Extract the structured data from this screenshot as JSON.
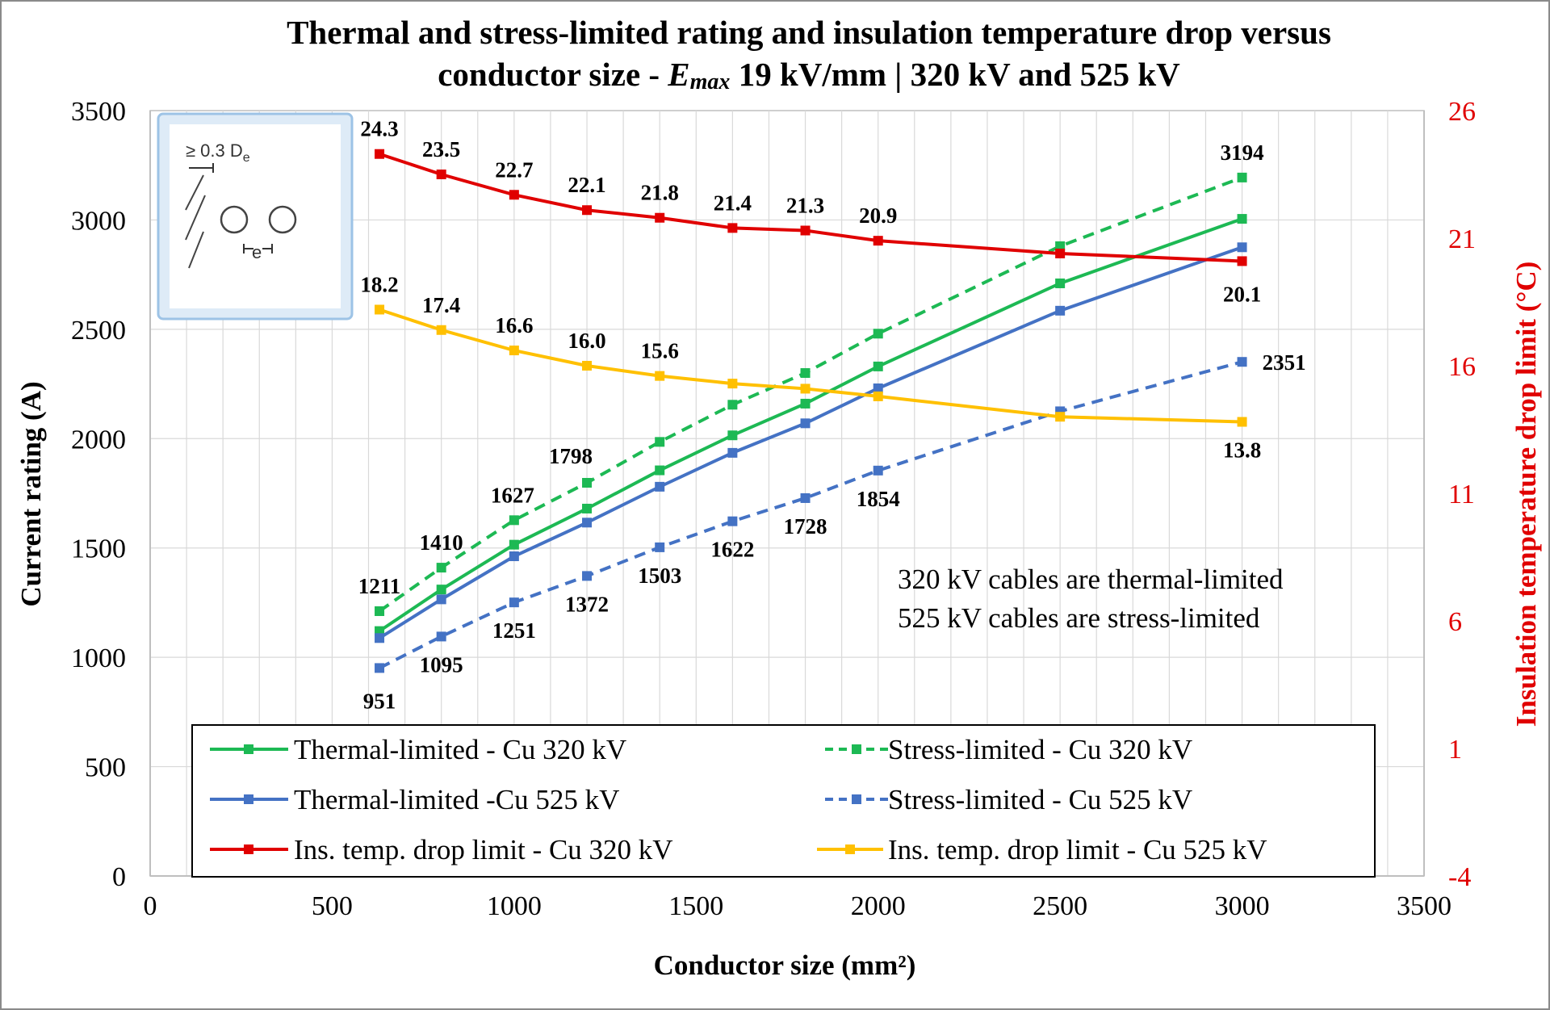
{
  "chart_data": {
    "type": "line",
    "title_line1": "Thermal and stress-limited rating and insulation temperature drop versus",
    "title_line2_prefix": "conductor size - ",
    "title_line2_emax": "E",
    "title_line2_emax_sub": "max",
    "title_line2_suffix": " 19 kV/mm | 320 kV and 525 kV",
    "xlabel": "Conductor size (mm²)",
    "ylabel": "Current rating (A)",
    "y2label": "Insulation temperature drop limit (°C)",
    "xlim": [
      0,
      3500
    ],
    "ylim": [
      0,
      3500
    ],
    "y2lim": [
      -4,
      26
    ],
    "x_ticks": [
      "0",
      "500",
      "1000",
      "1500",
      "2000",
      "2500",
      "3000",
      "3500"
    ],
    "y_ticks": [
      "0",
      "500",
      "1000",
      "1500",
      "2000",
      "2500",
      "3000",
      "3500"
    ],
    "y2_ticks": [
      "-4",
      "1",
      "6",
      "11",
      "16",
      "21",
      "26"
    ],
    "x": [
      630,
      800,
      1000,
      1200,
      1400,
      1600,
      1800,
      2000,
      2500,
      3000
    ],
    "series": [
      {
        "name": "Thermal-limited - Cu 320 kV",
        "axis": "left",
        "color": "#1db954",
        "dash": false,
        "values": [
          1120,
          1310,
          1515,
          1680,
          1855,
          2015,
          2160,
          2330,
          2710,
          3005
        ],
        "labels": null
      },
      {
        "name": "Stress-limited - Cu 320 kV",
        "axis": "left",
        "color": "#1db954",
        "dash": true,
        "values": [
          1211,
          1410,
          1627,
          1798,
          1985,
          2155,
          2300,
          2480,
          2880,
          3194
        ],
        "labels": [
          "1211",
          "1410",
          "1627",
          "1798",
          null,
          null,
          null,
          null,
          null,
          "3194"
        ]
      },
      {
        "name": "Thermal-limited -Cu 525 kV",
        "axis": "left",
        "color": "#4472c4",
        "dash": false,
        "values": [
          1088,
          1265,
          1462,
          1616,
          1780,
          1935,
          2070,
          2230,
          2585,
          2875
        ],
        "labels": null
      },
      {
        "name": "Stress-limited - Cu 525 kV",
        "axis": "left",
        "color": "#4472c4",
        "dash": true,
        "values": [
          951,
          1095,
          1251,
          1372,
          1503,
          1622,
          1728,
          1854,
          2125,
          2351
        ],
        "labels": [
          "951",
          "1095",
          "1251",
          "1372",
          "1503",
          "1622",
          "1728",
          "1854",
          null,
          "2351"
        ]
      },
      {
        "name": "Ins. temp. drop limit - Cu 320 kV",
        "axis": "right",
        "color": "#e00000",
        "dash": false,
        "values": [
          24.3,
          23.5,
          22.7,
          22.1,
          21.8,
          21.4,
          21.3,
          20.9,
          20.4,
          20.1
        ],
        "labels": [
          "24.3",
          "23.5",
          "22.7",
          "22.1",
          "21.8",
          "21.4",
          "21.3",
          "20.9",
          null,
          "20.1"
        ]
      },
      {
        "name": "Ins. temp. drop limit - Cu 525 kV",
        "axis": "right",
        "color": "#ffc000",
        "dash": false,
        "values": [
          18.2,
          17.4,
          16.6,
          16.0,
          15.6,
          15.3,
          15.1,
          14.8,
          14.0,
          13.8
        ],
        "labels": [
          "18.2",
          "17.4",
          "16.6",
          "16.0",
          "15.6",
          null,
          null,
          null,
          null,
          "13.8"
        ]
      }
    ],
    "legend_order": [
      0,
      1,
      2,
      3,
      4,
      5
    ],
    "annotations": [
      "320 kV cables are thermal-limited",
      "525 kV cables are stress-limited"
    ],
    "inset": {
      "spacing_label": "≥ 0.3 D",
      "spacing_sub": "e",
      "gap_sub": "e"
    }
  }
}
